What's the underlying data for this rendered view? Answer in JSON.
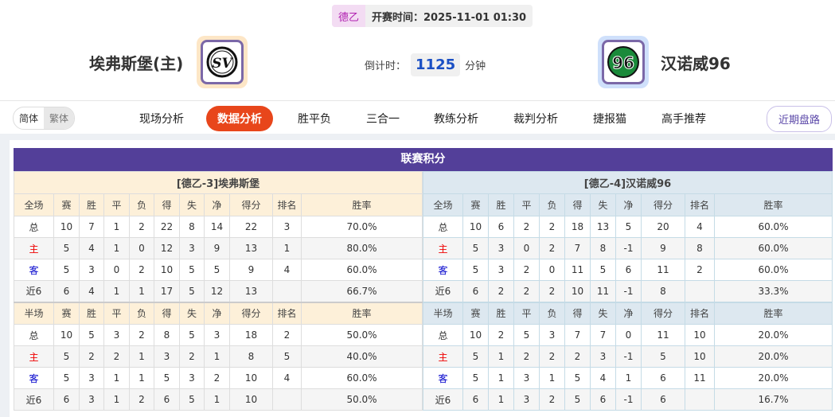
{
  "header": {
    "league": "德乙",
    "kickoff": "开赛时间：2025-11-01 01:30",
    "home_team": "埃弗斯堡(主)",
    "away_team": "汉诺威96",
    "countdown_label": "倒计时：",
    "countdown_value": "1125",
    "countdown_unit": "分钟",
    "home_logo_text": "SV",
    "away_logo_text": "96"
  },
  "colors": {
    "accent": "#e8461b",
    "title_bar": "#533f99",
    "countdown": "#1a4fc4"
  },
  "nav": {
    "lang": [
      "简体",
      "繁体"
    ],
    "items": [
      "现场分析",
      "数据分析",
      "胜平负",
      "三合一",
      "教练分析",
      "裁判分析",
      "捷报猫",
      "高手推荐"
    ],
    "active": "数据分析",
    "recent": "近期盘路"
  },
  "standings": {
    "title": "联赛积分",
    "home": {
      "label": "[德乙-3]埃弗斯堡",
      "full_header": [
        "全场",
        "赛",
        "胜",
        "平",
        "负",
        "得",
        "失",
        "净",
        "得分",
        "排名",
        "胜率"
      ],
      "full": [
        [
          "总",
          "10",
          "7",
          "1",
          "2",
          "22",
          "8",
          "14",
          "22",
          "3",
          "70.0%"
        ],
        [
          "主",
          "5",
          "4",
          "1",
          "0",
          "12",
          "3",
          "9",
          "13",
          "1",
          "80.0%"
        ],
        [
          "客",
          "5",
          "3",
          "0",
          "2",
          "10",
          "5",
          "5",
          "9",
          "4",
          "60.0%"
        ],
        [
          "近6",
          "6",
          "4",
          "1",
          "1",
          "17",
          "5",
          "12",
          "13",
          "",
          "66.7%"
        ]
      ],
      "half_header": [
        "半场",
        "赛",
        "胜",
        "平",
        "负",
        "得",
        "失",
        "净",
        "得分",
        "排名",
        "胜率"
      ],
      "half": [
        [
          "总",
          "10",
          "5",
          "3",
          "2",
          "8",
          "5",
          "3",
          "18",
          "2",
          "50.0%"
        ],
        [
          "主",
          "5",
          "2",
          "2",
          "1",
          "3",
          "2",
          "1",
          "8",
          "5",
          "40.0%"
        ],
        [
          "客",
          "5",
          "3",
          "1",
          "1",
          "5",
          "3",
          "2",
          "10",
          "4",
          "60.0%"
        ],
        [
          "近6",
          "6",
          "3",
          "1",
          "2",
          "6",
          "5",
          "1",
          "10",
          "",
          "50.0%"
        ]
      ]
    },
    "away": {
      "label": "[德乙-4]汉诺威96",
      "full_header": [
        "全场",
        "赛",
        "胜",
        "平",
        "负",
        "得",
        "失",
        "净",
        "得分",
        "排名",
        "胜率"
      ],
      "full": [
        [
          "总",
          "10",
          "6",
          "2",
          "2",
          "18",
          "13",
          "5",
          "20",
          "4",
          "60.0%"
        ],
        [
          "主",
          "5",
          "3",
          "0",
          "2",
          "7",
          "8",
          "-1",
          "9",
          "8",
          "60.0%"
        ],
        [
          "客",
          "5",
          "3",
          "2",
          "0",
          "11",
          "5",
          "6",
          "11",
          "2",
          "60.0%"
        ],
        [
          "近6",
          "6",
          "2",
          "2",
          "2",
          "10",
          "11",
          "-1",
          "8",
          "",
          "33.3%"
        ]
      ],
      "half_header": [
        "半场",
        "赛",
        "胜",
        "平",
        "负",
        "得",
        "失",
        "净",
        "得分",
        "排名",
        "胜率"
      ],
      "half": [
        [
          "总",
          "10",
          "2",
          "5",
          "3",
          "7",
          "7",
          "0",
          "11",
          "10",
          "20.0%"
        ],
        [
          "主",
          "5",
          "1",
          "2",
          "2",
          "2",
          "3",
          "-1",
          "5",
          "10",
          "20.0%"
        ],
        [
          "客",
          "5",
          "1",
          "3",
          "1",
          "5",
          "4",
          "1",
          "6",
          "11",
          "20.0%"
        ],
        [
          "近6",
          "6",
          "1",
          "3",
          "2",
          "5",
          "6",
          "-1",
          "6",
          "",
          "16.7%"
        ]
      ]
    }
  }
}
